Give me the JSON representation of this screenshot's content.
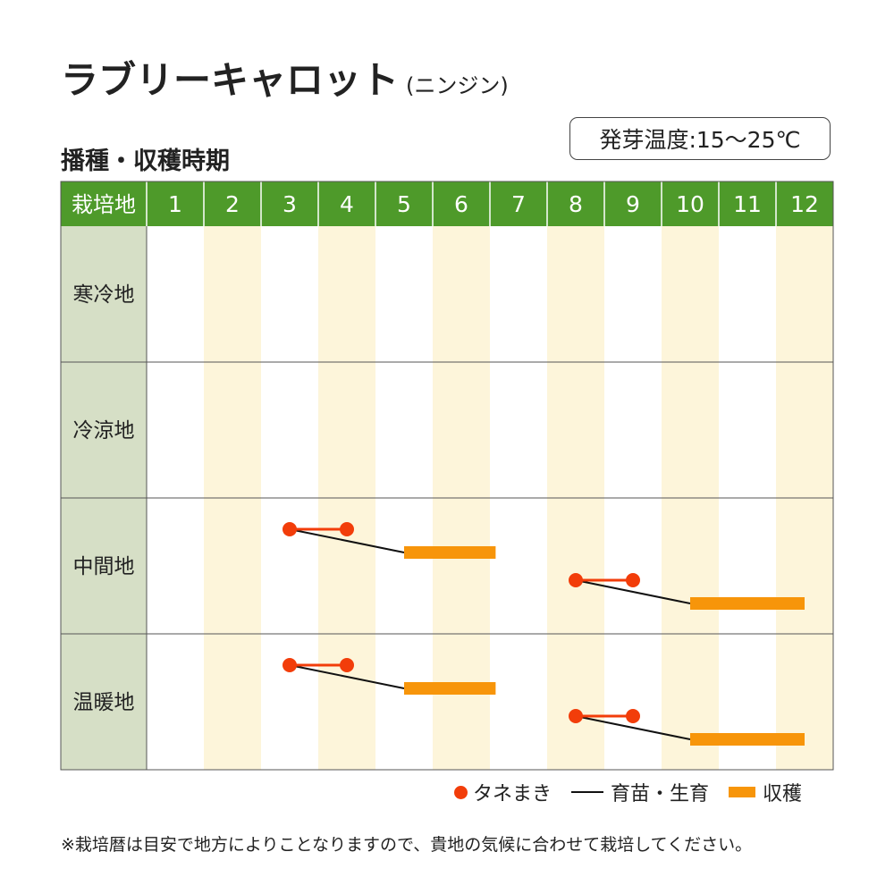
{
  "title": "ラブリーキャロット",
  "subtitle": "(ニンジン)",
  "section_title": "播種・収穫時期",
  "germination_temp": "発芽温度:15〜25℃",
  "colors": {
    "header_green": "#4e9a2a",
    "region_col": "#d6dfc6",
    "stripe": "#fdf5da",
    "sowing_red": "#f23d0a",
    "harvest_orange": "#f7950a",
    "growth_black": "#111111"
  },
  "chart_data": {
    "type": "table",
    "header_label": "栽培地",
    "months": [
      "1",
      "2",
      "3",
      "4",
      "5",
      "6",
      "7",
      "8",
      "9",
      "10",
      "11",
      "12"
    ],
    "regions": [
      "寒冷地",
      "冷涼地",
      "中間地",
      "温暖地"
    ],
    "schedules": [
      {
        "region": "寒冷地",
        "crops": []
      },
      {
        "region": "冷涼地",
        "crops": []
      },
      {
        "region": "中間地",
        "crops": [
          {
            "sow": [
              3.0,
              4.0
            ],
            "harvest": [
              5.0,
              6.6
            ]
          },
          {
            "sow": [
              8.0,
              9.0
            ],
            "harvest": [
              10.0,
              12.5
            ]
          }
        ]
      },
      {
        "region": "温暖地",
        "crops": [
          {
            "sow": [
              3.0,
              4.0
            ],
            "harvest": [
              5.0,
              6.6
            ]
          },
          {
            "sow": [
              8.0,
              9.0
            ],
            "harvest": [
              10.0,
              12.5
            ]
          }
        ]
      }
    ]
  },
  "legend": {
    "sowing": "タネまき",
    "growth": "育苗・生育",
    "harvest": "収穫"
  },
  "note": "※栽培暦は目安で地方によりことなりますので、貴地の気候に合わせて栽培してください。"
}
